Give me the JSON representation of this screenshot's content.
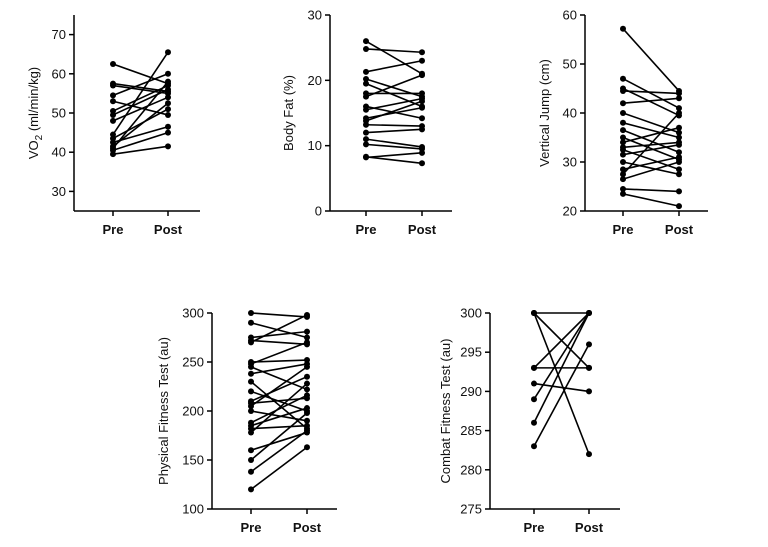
{
  "chart_data": [
    {
      "type": "line",
      "ylabel": "VO",
      "ylabel_sub": "2",
      "ylabel_tail": " (ml/min/kg)",
      "categories": [
        "Pre",
        "Post"
      ],
      "ylim": [
        25,
        75
      ],
      "yticks": [
        "30",
        "40",
        "50",
        "60",
        "70"
      ],
      "grid": false,
      "pairs": [
        [
          62.5,
          57.5
        ],
        [
          57.5,
          55.5
        ],
        [
          57.0,
          55.0
        ],
        [
          54.5,
          60.0
        ],
        [
          53.0,
          49.5
        ],
        [
          50.5,
          57.0
        ],
        [
          49.5,
          56.0
        ],
        [
          48.0,
          54.0
        ],
        [
          44.5,
          65.5
        ],
        [
          43.5,
          51.0
        ],
        [
          42.5,
          46.5
        ],
        [
          41.5,
          52.5
        ],
        [
          40.5,
          45.0
        ],
        [
          39.5,
          41.5
        ],
        [
          41.0,
          58.0
        ]
      ]
    },
    {
      "type": "line",
      "ylabel": "Body Fat (%)",
      "categories": [
        "Pre",
        "Post"
      ],
      "ylim": [
        0,
        30
      ],
      "yticks": [
        "0",
        "10",
        "20",
        "30"
      ],
      "grid": false,
      "pairs": [
        [
          26.0,
          21.0
        ],
        [
          24.8,
          24.3
        ],
        [
          21.3,
          23.0
        ],
        [
          20.2,
          17.5
        ],
        [
          19.5,
          16.0
        ],
        [
          18.0,
          18.0
        ],
        [
          17.5,
          20.8
        ],
        [
          16.0,
          14.2
        ],
        [
          15.5,
          17.2
        ],
        [
          14.2,
          15.8
        ],
        [
          13.8,
          16.8
        ],
        [
          13.2,
          13.0
        ],
        [
          12.0,
          12.5
        ],
        [
          11.0,
          9.8
        ],
        [
          10.2,
          9.5
        ],
        [
          8.3,
          7.3
        ],
        [
          8.2,
          8.9
        ]
      ]
    },
    {
      "type": "line",
      "ylabel": "Vertical Jump  (cm)",
      "categories": [
        "Pre",
        "Post"
      ],
      "ylim": [
        20,
        60
      ],
      "yticks": [
        "20",
        "30",
        "40",
        "50",
        "60"
      ],
      "grid": false,
      "pairs": [
        [
          57.2,
          44.5
        ],
        [
          47.0,
          41.0
        ],
        [
          45.0,
          39.5
        ],
        [
          44.5,
          44.0
        ],
        [
          42.0,
          43.0
        ],
        [
          40.0,
          36.0
        ],
        [
          38.0,
          35.0
        ],
        [
          36.5,
          32.0
        ],
        [
          35.0,
          30.5
        ],
        [
          34.0,
          37.0
        ],
        [
          33.0,
          34.0
        ],
        [
          32.5,
          28.5
        ],
        [
          31.5,
          33.5
        ],
        [
          30.0,
          27.5
        ],
        [
          28.5,
          31.0
        ],
        [
          27.5,
          40.0
        ],
        [
          26.5,
          30.0
        ],
        [
          24.5,
          24.0
        ],
        [
          23.5,
          21.0
        ]
      ]
    },
    {
      "type": "line",
      "ylabel": "Physical Fitness Test  (au)",
      "categories": [
        "Pre",
        "Post"
      ],
      "ylim": [
        100,
        300
      ],
      "yticks": [
        "100",
        "150",
        "200",
        "250",
        "300"
      ],
      "grid": false,
      "pairs": [
        [
          300,
          296
        ],
        [
          290,
          275
        ],
        [
          275,
          281
        ],
        [
          272,
          268
        ],
        [
          270,
          298
        ],
        [
          250,
          252
        ],
        [
          248,
          270
        ],
        [
          245,
          222
        ],
        [
          238,
          248
        ],
        [
          230,
          182
        ],
        [
          220,
          200
        ],
        [
          210,
          235
        ],
        [
          208,
          213
        ],
        [
          205,
          245
        ],
        [
          200,
          190
        ],
        [
          188,
          216
        ],
        [
          185,
          203
        ],
        [
          182,
          185
        ],
        [
          178,
          228
        ],
        [
          160,
          178
        ],
        [
          150,
          198
        ],
        [
          138,
          180
        ],
        [
          120,
          163
        ]
      ]
    },
    {
      "type": "line",
      "ylabel": "Combat Fitness Test  (au)",
      "categories": [
        "Pre",
        "Post"
      ],
      "ylim": [
        275,
        300
      ],
      "yticks": [
        "275",
        "280",
        "285",
        "290",
        "295",
        "300"
      ],
      "grid": false,
      "pairs": [
        [
          300,
          300
        ],
        [
          300,
          293
        ],
        [
          300,
          282
        ],
        [
          293,
          300
        ],
        [
          293,
          293
        ],
        [
          291,
          290
        ],
        [
          289,
          300
        ],
        [
          286,
          300
        ],
        [
          283,
          296
        ]
      ]
    }
  ]
}
